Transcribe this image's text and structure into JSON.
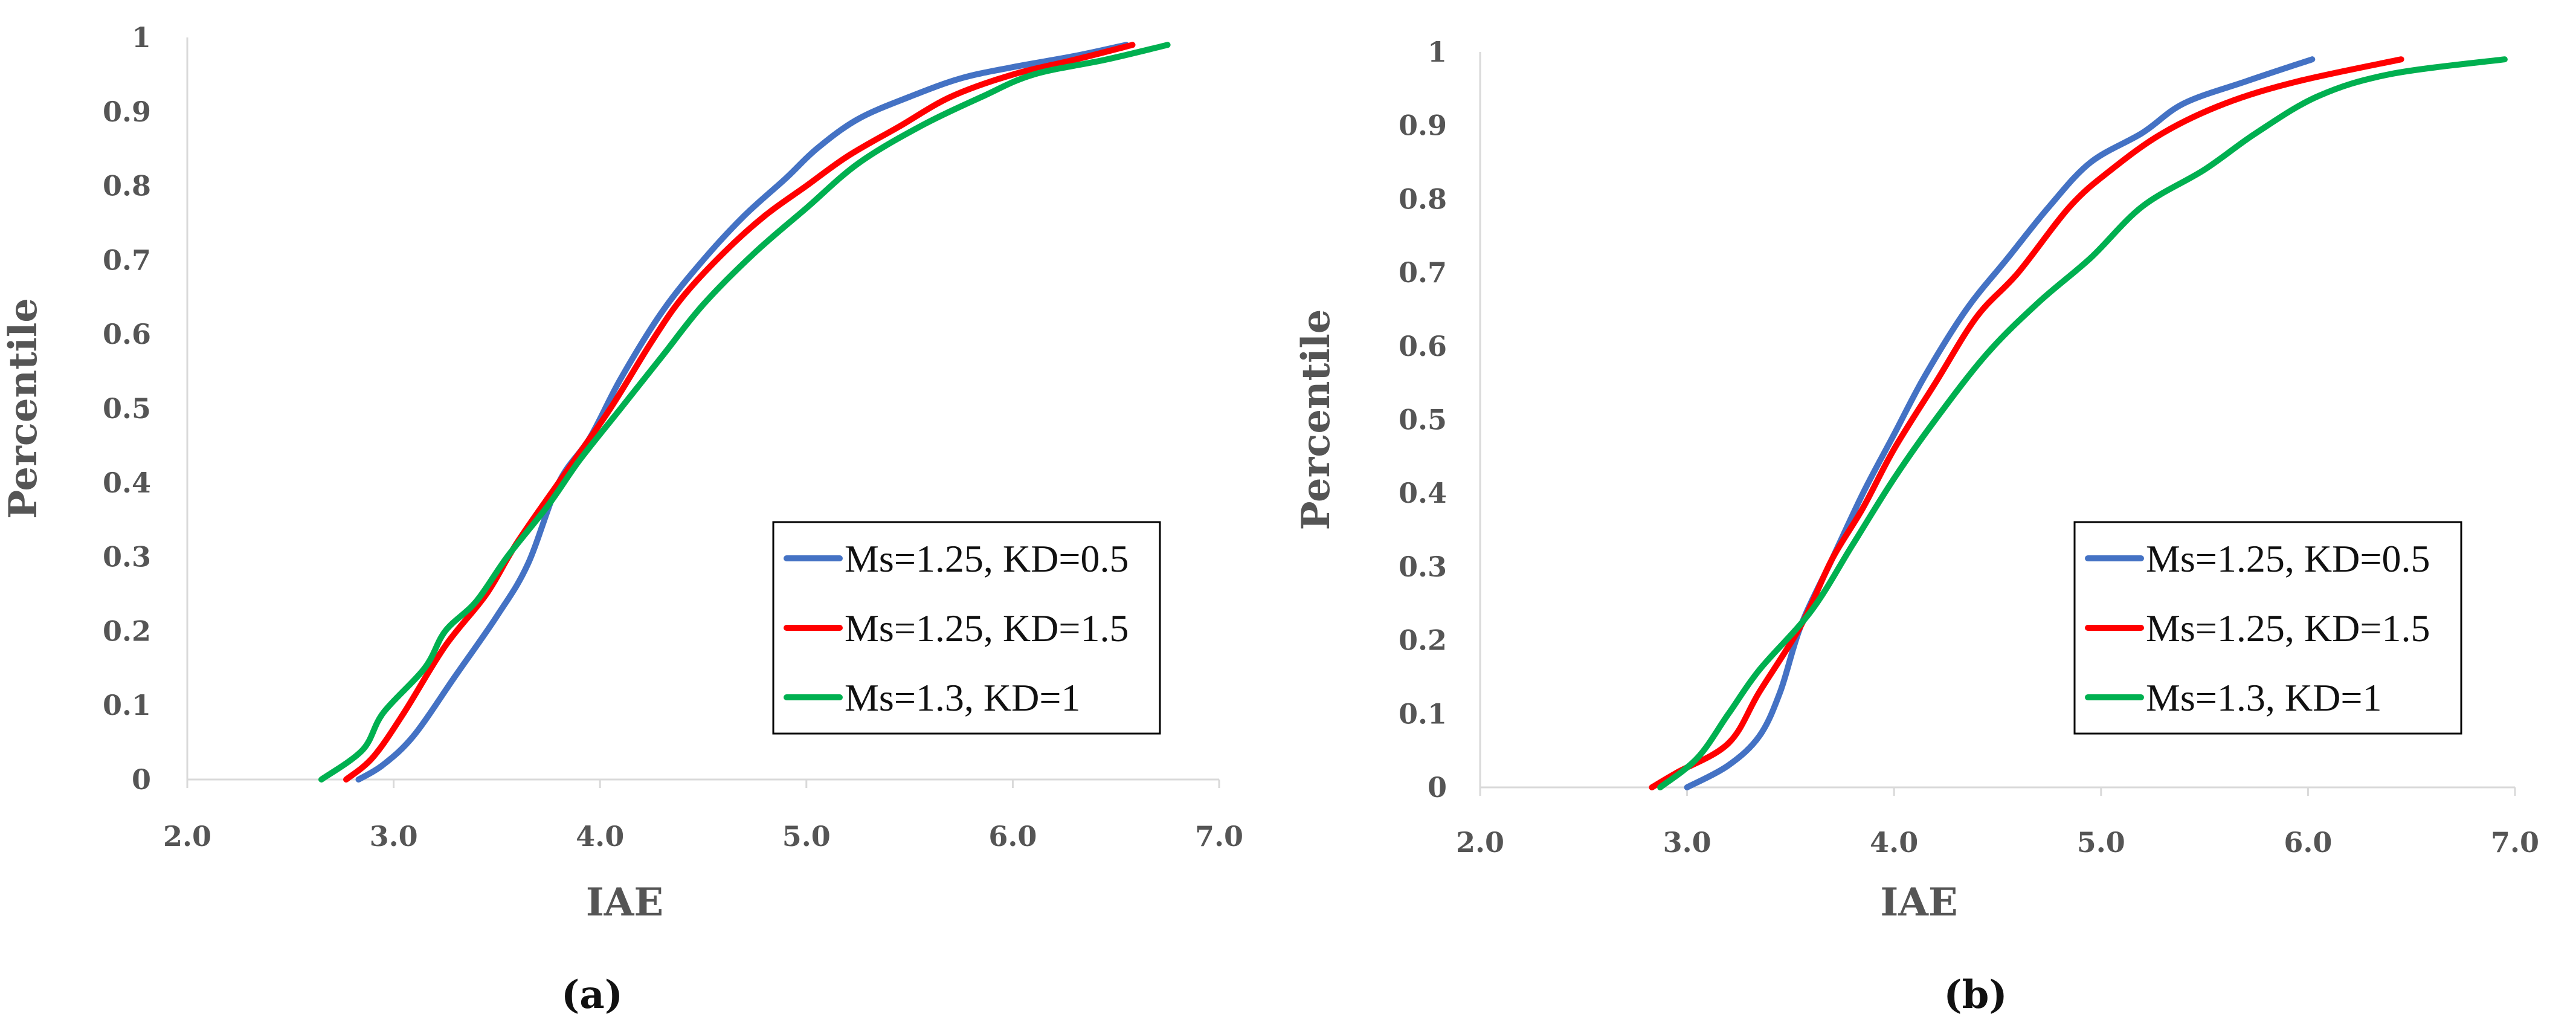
{
  "chart_data": [
    {
      "type": "line",
      "caption": "(a)",
      "xlabel": "IAE",
      "ylabel": "Percentile",
      "xlim": [
        2.0,
        7.0
      ],
      "ylim": [
        0,
        1
      ],
      "xticks": [
        "2.0",
        "3.0",
        "4.0",
        "5.0",
        "6.0",
        "7.0"
      ],
      "yticks": [
        "0",
        "0.1",
        "0.2",
        "0.3",
        "0.4",
        "0.5",
        "0.6",
        "0.7",
        "0.8",
        "0.9",
        "1"
      ],
      "legend_position": "bottom-right",
      "series": [
        {
          "name": "Ms=1.25, KD=0.5",
          "color": "#4472C4",
          "points": [
            [
              2.83,
              0
            ],
            [
              2.95,
              0.02
            ],
            [
              3.1,
              0.06
            ],
            [
              3.3,
              0.14
            ],
            [
              3.5,
              0.22
            ],
            [
              3.65,
              0.29
            ],
            [
              3.8,
              0.4
            ],
            [
              3.95,
              0.46
            ],
            [
              4.1,
              0.54
            ],
            [
              4.3,
              0.63
            ],
            [
              4.5,
              0.7
            ],
            [
              4.7,
              0.76
            ],
            [
              4.9,
              0.81
            ],
            [
              5.05,
              0.85
            ],
            [
              5.25,
              0.89
            ],
            [
              5.5,
              0.92
            ],
            [
              5.75,
              0.945
            ],
            [
              6.0,
              0.96
            ],
            [
              6.3,
              0.975
            ],
            [
              6.55,
              0.99
            ]
          ]
        },
        {
          "name": "Ms=1.25, KD=1.5",
          "color": "#FF0000",
          "points": [
            [
              2.77,
              0
            ],
            [
              2.9,
              0.03
            ],
            [
              3.05,
              0.09
            ],
            [
              3.25,
              0.18
            ],
            [
              3.45,
              0.25
            ],
            [
              3.6,
              0.32
            ],
            [
              3.85,
              0.42
            ],
            [
              4.05,
              0.5
            ],
            [
              4.25,
              0.59
            ],
            [
              4.4,
              0.65
            ],
            [
              4.6,
              0.71
            ],
            [
              4.8,
              0.76
            ],
            [
              5.0,
              0.8
            ],
            [
              5.2,
              0.84
            ],
            [
              5.45,
              0.88
            ],
            [
              5.7,
              0.92
            ],
            [
              6.0,
              0.95
            ],
            [
              6.3,
              0.97
            ],
            [
              6.58,
              0.99
            ]
          ]
        },
        {
          "name": "Ms=1.3, KD=1",
          "color": "#00B050",
          "points": [
            [
              2.65,
              0
            ],
            [
              2.85,
              0.04
            ],
            [
              2.95,
              0.09
            ],
            [
              3.15,
              0.15
            ],
            [
              3.25,
              0.2
            ],
            [
              3.4,
              0.24
            ],
            [
              3.55,
              0.3
            ],
            [
              3.75,
              0.37
            ],
            [
              3.9,
              0.43
            ],
            [
              4.1,
              0.5
            ],
            [
              4.3,
              0.57
            ],
            [
              4.5,
              0.64
            ],
            [
              4.75,
              0.71
            ],
            [
              5.0,
              0.77
            ],
            [
              5.25,
              0.83
            ],
            [
              5.55,
              0.88
            ],
            [
              5.85,
              0.92
            ],
            [
              6.1,
              0.95
            ],
            [
              6.45,
              0.97
            ],
            [
              6.75,
              0.99
            ]
          ]
        }
      ]
    },
    {
      "type": "line",
      "caption": "(b)",
      "xlabel": "IAE",
      "ylabel": "Percentile",
      "xlim": [
        2.0,
        7.0
      ],
      "ylim": [
        0,
        1
      ],
      "xticks": [
        "2.0",
        "3.0",
        "4.0",
        "5.0",
        "6.0",
        "7.0"
      ],
      "yticks": [
        "0",
        "0.1",
        "0.2",
        "0.3",
        "0.4",
        "0.5",
        "0.6",
        "0.7",
        "0.8",
        "0.9",
        "1"
      ],
      "legend_position": "bottom-right",
      "series": [
        {
          "name": "Ms=1.25, KD=0.5",
          "color": "#4472C4",
          "points": [
            [
              3.0,
              0
            ],
            [
              3.2,
              0.03
            ],
            [
              3.35,
              0.07
            ],
            [
              3.45,
              0.13
            ],
            [
              3.55,
              0.22
            ],
            [
              3.7,
              0.31
            ],
            [
              3.85,
              0.4
            ],
            [
              4.0,
              0.48
            ],
            [
              4.15,
              0.56
            ],
            [
              4.35,
              0.65
            ],
            [
              4.55,
              0.72
            ],
            [
              4.75,
              0.79
            ],
            [
              4.95,
              0.85
            ],
            [
              5.2,
              0.89
            ],
            [
              5.4,
              0.93
            ],
            [
              5.7,
              0.96
            ],
            [
              6.02,
              0.99
            ]
          ]
        },
        {
          "name": "Ms=1.25, KD=1.5",
          "color": "#FF0000",
          "points": [
            [
              2.83,
              0
            ],
            [
              2.95,
              0.02
            ],
            [
              3.2,
              0.06
            ],
            [
              3.35,
              0.13
            ],
            [
              3.55,
              0.22
            ],
            [
              3.7,
              0.31
            ],
            [
              3.85,
              0.38
            ],
            [
              4.0,
              0.46
            ],
            [
              4.2,
              0.55
            ],
            [
              4.4,
              0.64
            ],
            [
              4.6,
              0.7
            ],
            [
              4.85,
              0.79
            ],
            [
              5.05,
              0.84
            ],
            [
              5.3,
              0.89
            ],
            [
              5.6,
              0.93
            ],
            [
              5.95,
              0.96
            ],
            [
              6.45,
              0.99
            ]
          ]
        },
        {
          "name": "Ms=1.3, KD=1",
          "color": "#00B050",
          "points": [
            [
              2.87,
              0
            ],
            [
              3.05,
              0.04
            ],
            [
              3.2,
              0.1
            ],
            [
              3.35,
              0.16
            ],
            [
              3.6,
              0.24
            ],
            [
              3.8,
              0.33
            ],
            [
              4.0,
              0.42
            ],
            [
              4.2,
              0.5
            ],
            [
              4.45,
              0.59
            ],
            [
              4.7,
              0.66
            ],
            [
              4.95,
              0.72
            ],
            [
              5.2,
              0.79
            ],
            [
              5.5,
              0.84
            ],
            [
              5.75,
              0.89
            ],
            [
              6.05,
              0.94
            ],
            [
              6.4,
              0.97
            ],
            [
              6.95,
              0.99
            ]
          ]
        }
      ]
    }
  ]
}
